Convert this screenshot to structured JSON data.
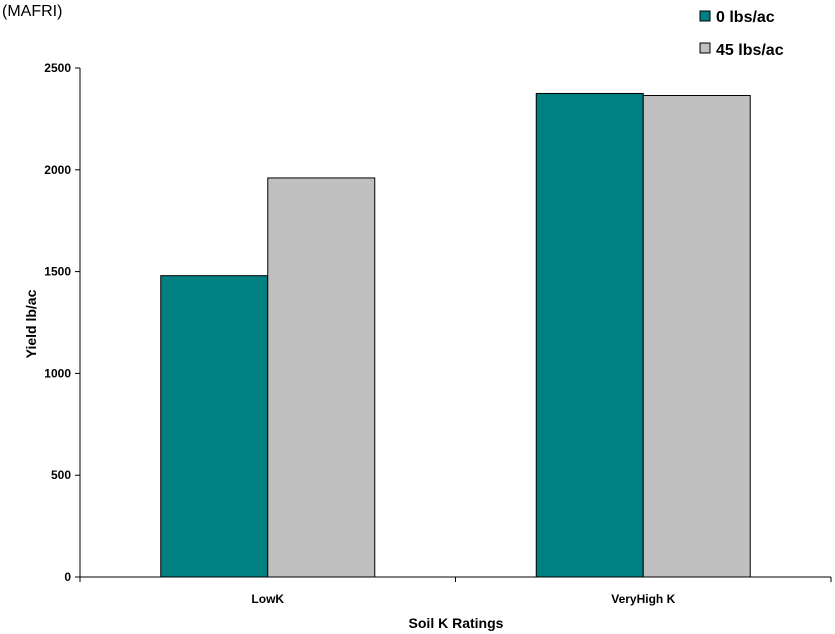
{
  "source_note": "(MAFRI)",
  "chart_data": {
    "type": "bar",
    "title": "",
    "xlabel": "Soil K Ratings",
    "ylabel": "Yield lb/ac",
    "categories": [
      "LowK",
      "VeryHigh K"
    ],
    "series": [
      {
        "name": "0 lbs/ac",
        "values": [
          1480,
          2375
        ],
        "color": "#008080"
      },
      {
        "name": "45 lbs/ac",
        "values": [
          1960,
          2365
        ],
        "color": "#c0c0c0"
      }
    ],
    "ylim": [
      0,
      2500
    ],
    "yticks": [
      0,
      500,
      1000,
      1500,
      2000,
      2500
    ],
    "grid": false,
    "legend_position": "top-right"
  }
}
